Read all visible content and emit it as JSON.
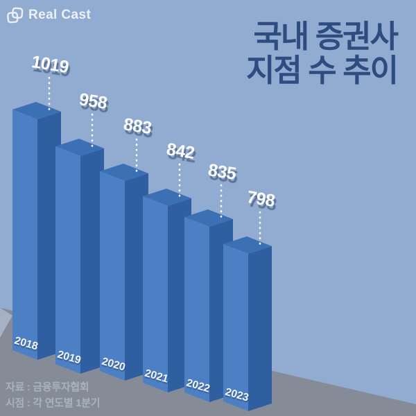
{
  "brand": {
    "logo_text": "Real Cast"
  },
  "title": {
    "line1": "국내 증권사",
    "line2": "지점 수 추이"
  },
  "chart_data": {
    "type": "bar",
    "style": "3d-isometric",
    "title": "국내 증권사 지점 수 추이",
    "categories": [
      "2018",
      "2019",
      "2020",
      "2021",
      "2022",
      "2023"
    ],
    "values": [
      1019,
      958,
      883,
      842,
      835,
      798
    ],
    "value_labels_shown": true,
    "axes_shown": false,
    "grid": false,
    "legend_position": "none"
  },
  "source": {
    "line1": "자료 : 금융투자협회",
    "line2": "시점 : 각 연도별 1분기"
  },
  "colors": {
    "background": "#92abd1",
    "floor": "#858c98",
    "floor_highlight": "#a6b1c5",
    "bar_front": "#4d7fc5",
    "bar_top": "#3c70b4",
    "bar_side": "#2f5fa0",
    "title_text": "#2d4c7f",
    "label_text": "#ffffff",
    "source_text": "#a9b2c0"
  }
}
